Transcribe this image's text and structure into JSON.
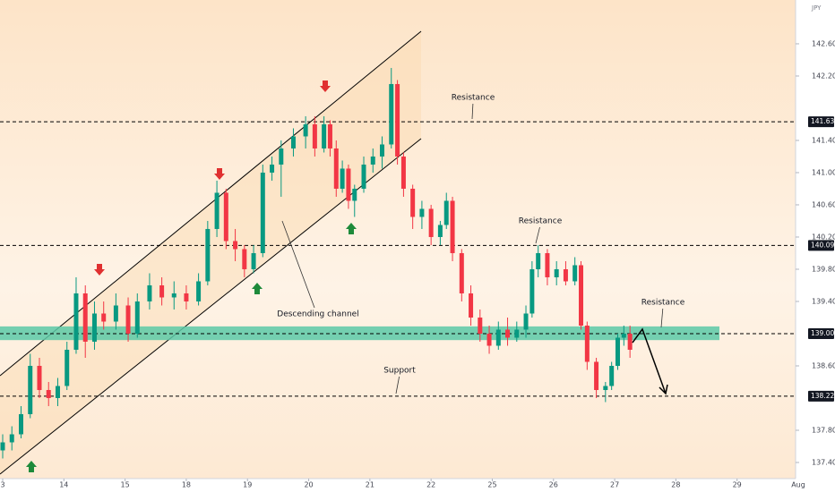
{
  "chart_data": {
    "type": "candlestick",
    "currency": "JPY",
    "x": [
      0,
      0.15,
      0.3,
      0.45,
      0.6,
      0.75,
      0.9,
      1.05,
      1.2,
      1.35,
      1.5,
      1.65,
      1.85,
      2.05,
      2.2,
      2.4,
      2.6,
      2.8,
      3,
      3.2,
      3.35,
      3.5,
      3.65,
      3.8,
      3.95,
      4.1,
      4.25,
      4.4,
      4.55,
      4.75,
      4.95,
      5.1,
      5.25,
      5.35,
      5.45,
      5.55,
      5.65,
      5.75,
      5.9,
      6.05,
      6.2,
      6.35,
      6.45,
      6.55,
      6.7,
      6.85,
      7,
      7.15,
      7.25,
      7.35,
      7.5,
      7.65,
      7.8,
      7.95,
      8.1,
      8.25,
      8.4,
      8.55,
      8.65,
      8.75,
      8.9,
      9.05,
      9.2,
      9.35,
      9.45,
      9.55,
      9.7,
      9.85,
      9.95,
      10.05,
      10.15,
      10.25
    ],
    "open": [
      137.55,
      137.65,
      137.75,
      138.0,
      138.6,
      138.3,
      138.2,
      138.35,
      138.8,
      139.5,
      138.9,
      139.25,
      139.15,
      139.35,
      139.0,
      139.4,
      139.6,
      139.45,
      139.5,
      139.4,
      139.65,
      140.3,
      140.75,
      140.15,
      140.05,
      139.8,
      140.0,
      141.0,
      141.1,
      141.3,
      141.45,
      141.6,
      141.3,
      141.6,
      141.3,
      140.8,
      141.05,
      140.65,
      140.8,
      141.1,
      141.2,
      141.35,
      142.1,
      141.2,
      140.8,
      140.45,
      140.55,
      140.2,
      140.35,
      140.65,
      140.0,
      139.5,
      139.2,
      139.0,
      138.85,
      139.05,
      138.95,
      139.05,
      139.25,
      139.8,
      140.0,
      139.7,
      139.8,
      139.65,
      139.85,
      139.1,
      138.65,
      138.3,
      138.35,
      138.6,
      138.95,
      139.0
    ],
    "high": [
      137.75,
      137.85,
      138.1,
      138.75,
      138.7,
      138.4,
      138.45,
      138.9,
      139.7,
      139.6,
      139.4,
      139.4,
      139.5,
      139.45,
      139.5,
      139.75,
      139.7,
      139.65,
      139.6,
      139.75,
      140.4,
      140.9,
      140.8,
      140.3,
      140.1,
      140.1,
      141.1,
      141.2,
      141.4,
      141.55,
      141.7,
      141.7,
      141.7,
      141.65,
      141.4,
      141.15,
      141.1,
      140.85,
      141.2,
      141.3,
      141.45,
      142.3,
      142.15,
      141.25,
      140.85,
      140.65,
      140.6,
      140.4,
      140.75,
      140.7,
      140.05,
      139.6,
      139.3,
      139.1,
      139.15,
      139.2,
      139.15,
      139.35,
      139.9,
      140.1,
      140.05,
      139.9,
      139.9,
      139.95,
      139.9,
      139.15,
      138.7,
      138.4,
      138.65,
      139.0,
      139.1,
      139.1
    ],
    "low": [
      137.45,
      137.55,
      137.7,
      137.95,
      138.2,
      138.1,
      138.1,
      138.3,
      138.75,
      138.7,
      138.8,
      139.05,
      139.05,
      138.9,
      138.95,
      139.3,
      139.35,
      139.3,
      139.3,
      139.35,
      139.6,
      140.2,
      140.05,
      139.9,
      139.7,
      139.75,
      139.95,
      140.9,
      140.7,
      141.2,
      141.3,
      141.2,
      141.25,
      141.2,
      140.7,
      140.75,
      140.55,
      140.45,
      140.75,
      141.0,
      141.05,
      141.3,
      141.1,
      140.7,
      140.3,
      140.3,
      140.1,
      140.1,
      140.3,
      139.9,
      139.4,
      139.1,
      138.9,
      138.75,
      138.8,
      138.85,
      138.9,
      138.95,
      139.2,
      139.7,
      139.6,
      139.6,
      139.6,
      139.6,
      139.05,
      138.55,
      138.2,
      138.15,
      138.3,
      138.55,
      138.85,
      138.7
    ],
    "close": [
      137.65,
      137.75,
      138.0,
      138.6,
      138.3,
      138.2,
      138.35,
      138.8,
      139.5,
      138.9,
      139.25,
      139.15,
      139.35,
      139.0,
      139.4,
      139.6,
      139.45,
      139.5,
      139.4,
      139.65,
      140.3,
      140.75,
      140.15,
      140.05,
      139.8,
      140.0,
      141.0,
      141.1,
      141.3,
      141.45,
      141.6,
      141.3,
      141.6,
      141.3,
      140.8,
      141.05,
      140.65,
      140.8,
      141.1,
      141.2,
      141.35,
      142.1,
      141.2,
      140.8,
      140.45,
      140.55,
      140.2,
      140.35,
      140.65,
      140.0,
      139.5,
      139.2,
      139.0,
      138.85,
      139.05,
      138.95,
      139.05,
      139.25,
      139.8,
      140.0,
      139.7,
      139.8,
      139.65,
      139.85,
      139.1,
      138.65,
      138.3,
      138.35,
      138.6,
      138.95,
      139.0,
      138.8
    ],
    "up_color": "#089981",
    "down_color": "#f23645",
    "ylim": [
      137.2,
      143.144
    ],
    "yticks": [
      {
        "value": 142.6,
        "label": "142.600"
      },
      {
        "value": 142.2,
        "label": "142.200"
      },
      {
        "value": 141.4,
        "label": "141.400"
      },
      {
        "value": 141.0,
        "label": "141.000"
      },
      {
        "value": 140.6,
        "label": "140.600"
      },
      {
        "value": 140.2,
        "label": "140.200"
      },
      {
        "value": 139.8,
        "label": "139.800"
      },
      {
        "value": 139.4,
        "label": "139.400"
      },
      {
        "value": 138.6,
        "label": "138.600"
      },
      {
        "value": 137.8,
        "label": "137.800"
      },
      {
        "value": 137.4,
        "label": "137.400"
      }
    ],
    "xlim": [
      -0.044,
      13
    ],
    "xticks": [
      {
        "value": 0,
        "label": "3"
      },
      {
        "value": 1,
        "label": "14"
      },
      {
        "value": 2,
        "label": "15"
      },
      {
        "value": 3,
        "label": "18"
      },
      {
        "value": 4,
        "label": "19"
      },
      {
        "value": 5,
        "label": "20"
      },
      {
        "value": 6,
        "label": "21"
      },
      {
        "value": 7,
        "label": "22"
      },
      {
        "value": 8,
        "label": "25"
      },
      {
        "value": 9,
        "label": "26"
      },
      {
        "value": 10,
        "label": "27"
      },
      {
        "value": 11,
        "label": "28"
      },
      {
        "value": 12,
        "label": "29"
      },
      {
        "value": 13,
        "label": "Aug"
      }
    ],
    "grid": false,
    "levels": [
      {
        "value": 141.631,
        "label": "141.631"
      },
      {
        "value": 140.095,
        "label": "140.095"
      },
      {
        "value": 139.0,
        "label": "139.000"
      },
      {
        "value": 138.224,
        "label": "138.224"
      }
    ],
    "zone": {
      "low": 138.92,
      "high": 139.09,
      "color": "#5cc9a7"
    },
    "annotations": [
      "Resistance",
      "Resistance",
      "Resistance",
      "Support",
      "Descending channel"
    ]
  }
}
